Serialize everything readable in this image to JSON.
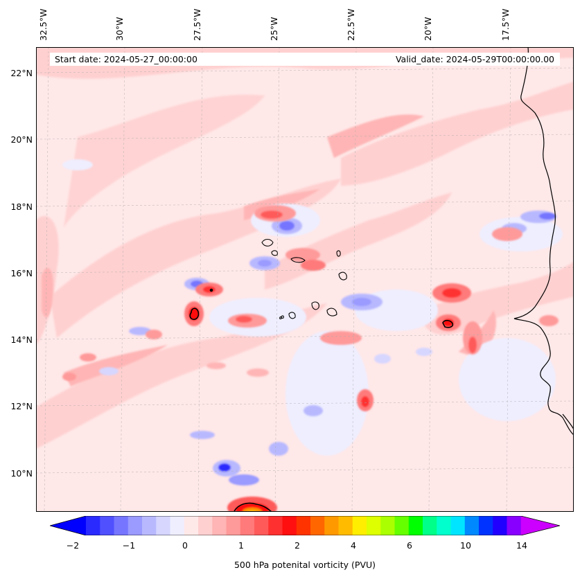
{
  "map": {
    "longitude_labels": [
      "32.5°W",
      "30°W",
      "27.5°W",
      "25°W",
      "22.5°W",
      "20°W",
      "17.5°W"
    ],
    "latitude_labels": [
      "22°N",
      "20°N",
      "18°N",
      "16°N",
      "14°N",
      "12°N",
      "10°N"
    ],
    "start_date": "Start date: 2024-05-27_00:00:00",
    "valid_date": "Valid_date: 2024-05-29T00:00:00.00",
    "field": "500 hPa potential vorticity",
    "extent": {
      "lon_min": -32.6,
      "lon_max": -15.0,
      "lat_min": 8.9,
      "lat_max": 22.8
    }
  },
  "colorbar": {
    "label": "500 hPa potenital vorticity (PVU)",
    "ticks": [
      "−2",
      "−1",
      "0",
      "1",
      "2",
      "4",
      "6",
      "10",
      "14"
    ],
    "colors": [
      "#0000ff",
      "#2a2aff",
      "#5050ff",
      "#7575ff",
      "#9a9aff",
      "#b8b8ff",
      "#d6d6ff",
      "#eeeeff",
      "#ffe8e8",
      "#ffd0d0",
      "#ffb5b5",
      "#ff9a9a",
      "#ff7a7a",
      "#ff5a5a",
      "#ff3030",
      "#ff0f0f",
      "#ff3300",
      "#ff6600",
      "#ff9900",
      "#ffbb00",
      "#ffee00",
      "#ddff00",
      "#aaff00",
      "#66ff00",
      "#00ff00",
      "#00ff88",
      "#00ffcc",
      "#00e5ff",
      "#0088ff",
      "#0033ff",
      "#2200ff",
      "#8800ff",
      "#cc00ff"
    ]
  }
}
